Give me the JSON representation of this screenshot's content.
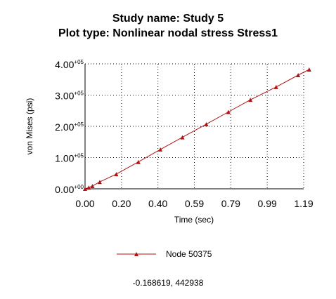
{
  "header": {
    "study_line": "Study name: Study 5",
    "plot_line": "Plot type: Nonlinear nodal stress Stress1"
  },
  "colors": {
    "series": "#b11212",
    "grid": "#000000",
    "background": "#ffffff"
  },
  "chart_data": {
    "type": "line",
    "xlabel": "Time (sec)",
    "ylabel": "von Mises (psi)",
    "xlim": [
      0,
      1.19
    ],
    "ylim": [
      0,
      400000
    ],
    "x_ticks": [
      "0.00",
      "0.20",
      "0.40",
      "0.59",
      "0.79",
      "0.99",
      "1.19"
    ],
    "y_ticks": [
      {
        "mantissa": "0.00",
        "exponent": "+00"
      },
      {
        "mantissa": "1.00",
        "exponent": "+05"
      },
      {
        "mantissa": "2.00",
        "exponent": "+05"
      },
      {
        "mantissa": "3.00",
        "exponent": "+05"
      },
      {
        "mantissa": "4.00",
        "exponent": "+05"
      }
    ],
    "grid": true,
    "legend_position": "bottom",
    "series": [
      {
        "name": "Node 50375",
        "marker": "triangle",
        "x": [
          0.0,
          0.02,
          0.04,
          0.08,
          0.17,
          0.29,
          0.41,
          0.53,
          0.66,
          0.78,
          0.9,
          1.04,
          1.16,
          1.22
        ],
        "y": [
          0,
          4000,
          9000,
          22000,
          47000,
          86000,
          126000,
          165000,
          207000,
          246000,
          285000,
          326000,
          364000,
          382000
        ]
      }
    ]
  },
  "readout": "-0.168619, 442938"
}
